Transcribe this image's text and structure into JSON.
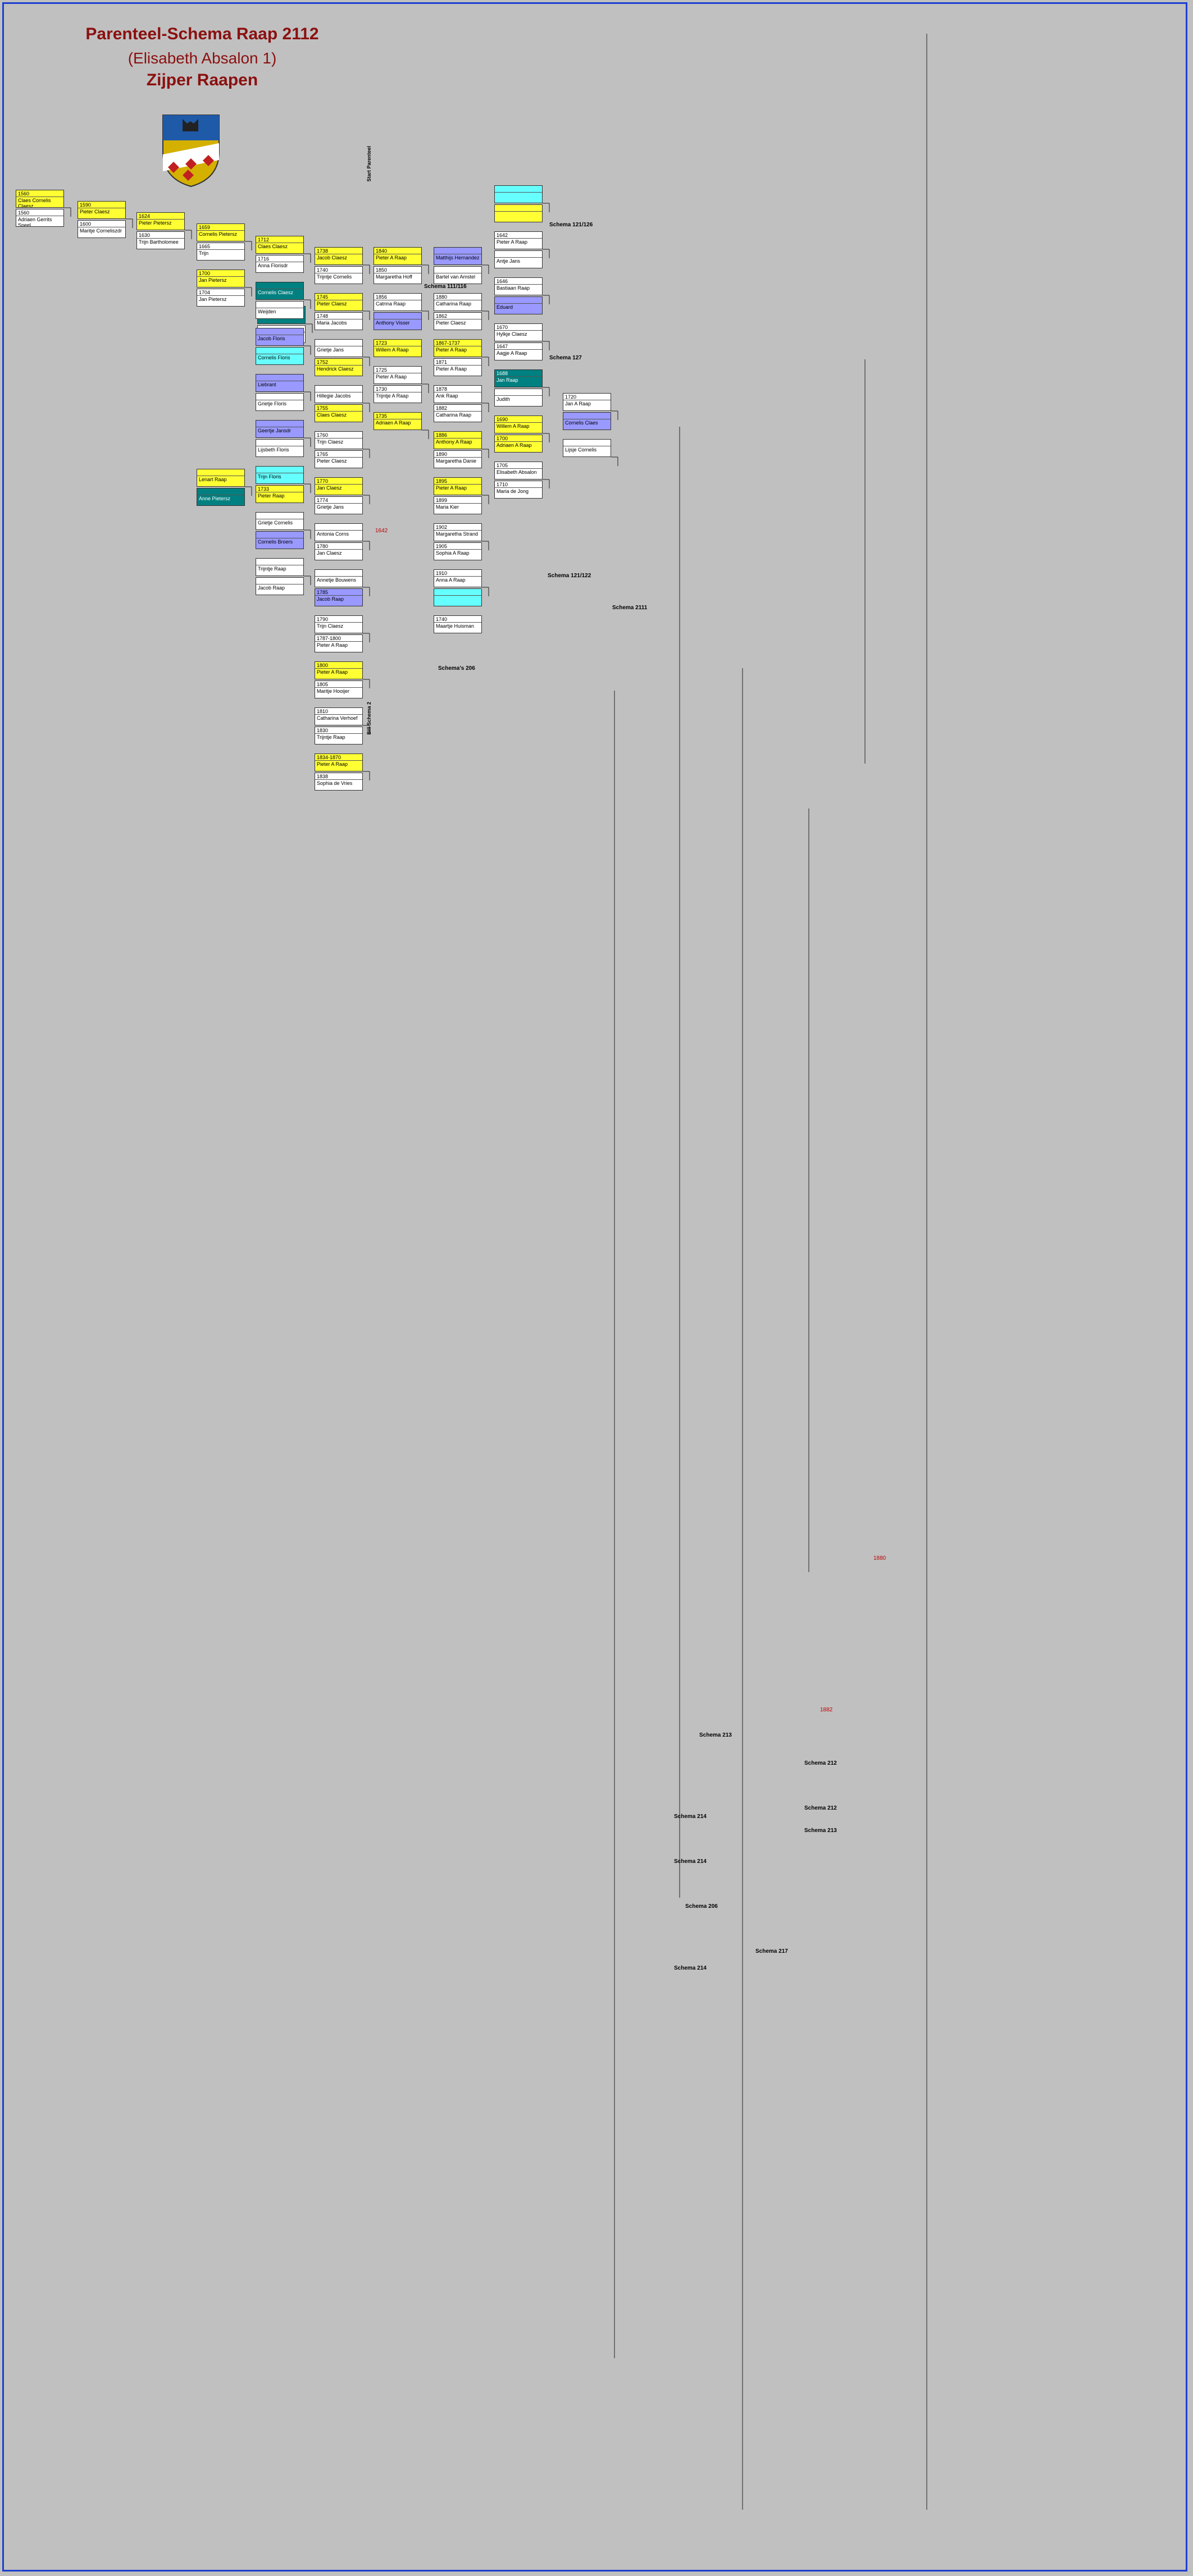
{
  "title": "Parenteel-Schema Raap 2112",
  "subtitle": "(Elisabeth Absalon 1)",
  "subtitle2": "Zijper Raapen",
  "colors": {
    "frame": "#1e3fd0",
    "title": "#8b1010",
    "yellow": "#ffff33",
    "teal": "#008080",
    "purple": "#9999ff",
    "cyan": "#66ffff"
  },
  "vertical_labels": [
    "Start Parenteel",
    "Bill Schema 2"
  ],
  "schema_labels": [
    "Schema 121/126",
    "Schema 111/116",
    "Schema 127",
    "Schema 121/122",
    "Schema 2111",
    "Schema's 206",
    "Schema 213",
    "Schema 212",
    "Schema 214",
    "Schema 214",
    "Schema 206",
    "Schema 214",
    "Schema 212",
    "Schema 213",
    "Schema 217"
  ],
  "marks": [
    "1642",
    "1880",
    "1882"
  ],
  "boxes": [
    [
      "1560",
      "Claes Cornelis Claesz",
      "yellow"
    ],
    [
      "1560",
      "Adriaen Gerrits Speel",
      "white"
    ],
    [
      "1590",
      "Pieter Claesz",
      "yellow"
    ],
    [
      "1600",
      "Maritje Corneliszdr",
      "white"
    ],
    [
      "1624",
      "Pieter Pietersz",
      "yellow"
    ],
    [
      "1630",
      "Trijn Bartholomee",
      "white"
    ],
    [
      "1659",
      "Cornelis Pietersz",
      "yellow"
    ],
    [
      "1665",
      "Trijn",
      "white"
    ],
    [
      "1700",
      "Jan Pietersz",
      "yellow"
    ],
    [
      "1704",
      "Jan Pietersz",
      "white"
    ],
    [
      "",
      "Jacob Pietersz",
      "teal"
    ],
    [
      "",
      "Grietje",
      "white"
    ],
    [
      "",
      "Lenart Raap",
      "yellow"
    ],
    [
      "",
      "Anne Pietersz",
      "teal"
    ],
    [
      "1712",
      "Claes Claesz",
      "yellow"
    ],
    [
      "1716",
      "Anna Florisdr",
      "white"
    ],
    [
      "",
      "Cornelis Claesz",
      "teal"
    ],
    [
      "",
      "Weijden",
      "white"
    ],
    [
      "",
      "Jacob Floris",
      "purple"
    ],
    [
      "",
      "Cornelis Floris",
      "cyan"
    ],
    [
      "",
      "Liebrant",
      "purple"
    ],
    [
      "",
      "Grietje Floris",
      "white"
    ],
    [
      "",
      "Geertje Jansdr",
      "purple"
    ],
    [
      "",
      "Lijsbeth Floris",
      "white"
    ],
    [
      "",
      "Trijn Floris",
      "cyan"
    ],
    [
      "1733",
      "Pieter Raap",
      "yellow"
    ],
    [
      "",
      "Grietje Cornelis",
      "white"
    ],
    [
      "",
      "Cornelis Broers",
      "purple"
    ],
    [
      "",
      "Trijntje Raap",
      "white"
    ],
    [
      "",
      "Jacob Raap",
      "white"
    ],
    [
      "1738",
      "Jacob Claesz",
      "yellow"
    ],
    [
      "1740",
      "Trijntje Cornelis",
      "white"
    ],
    [
      "1745",
      "Pieter Claesz",
      "yellow"
    ],
    [
      "1748",
      "Maria Jacobs",
      "white"
    ],
    [
      "",
      "Grietje Jans",
      "white"
    ],
    [
      "1752",
      "Hendrick Claesz",
      "yellow"
    ],
    [
      "",
      "Hillegie Jacobs",
      "white"
    ],
    [
      "1755",
      "Claes Claesz",
      "yellow"
    ],
    [
      "1760",
      "Trijn Claesz",
      "white"
    ],
    [
      "1765",
      "Pieter Claesz",
      "white"
    ],
    [
      "1770",
      "Jan Claesz",
      "yellow"
    ],
    [
      "1774",
      "Grietje Jans",
      "white"
    ],
    [
      "",
      "Antonia Corns",
      "white"
    ],
    [
      "1780",
      "Jan Claesz",
      "white"
    ],
    [
      "",
      "Annetje Bouwens",
      "white"
    ],
    [
      "1785",
      "Jacob Raap",
      "purple"
    ],
    [
      "1790",
      "Trijn Claesz",
      "white"
    ],
    [
      "1787-1800",
      "Pieter A Raap",
      "white"
    ],
    [
      "1800",
      "Pieter A Raap",
      "yellow"
    ],
    [
      "1805",
      "Maritje Hooijer",
      "white"
    ],
    [
      "1810",
      "Catharina Verhoef",
      "white"
    ],
    [
      "1830",
      "Trijntje Raap",
      "white"
    ],
    [
      "1834-1870",
      "Pieter A Raap",
      "yellow"
    ],
    [
      "1838",
      "Sophia de Vries",
      "white"
    ],
    [
      "1840",
      "Pieter A Raap",
      "yellow"
    ],
    [
      "1850",
      "Margaretha Hoff",
      "white"
    ],
    [
      "1856",
      "Catrina Raap",
      "white"
    ],
    [
      "",
      "Anthony Visser",
      "purple"
    ],
    [
      "",
      "Matthijs Hernandez",
      "purple"
    ],
    [
      "",
      "Bartel van Amstel",
      "white"
    ],
    [
      "1880",
      "Catharina Raap",
      "white"
    ],
    [
      "1862",
      "Pieter Claesz",
      "white"
    ],
    [
      "1867-1737",
      "Pieter A Raap",
      "yellow"
    ],
    [
      "1871",
      "Pieter A Raap",
      "white"
    ],
    [
      "1878",
      "Ank Raap",
      "white"
    ],
    [
      "1882",
      "Catharina Raap",
      "white"
    ],
    [
      "1886",
      "Anthony A Raap",
      "yellow"
    ],
    [
      "1890",
      "Margaretha Danie",
      "white"
    ],
    [
      "1895",
      "Pieter A Raap",
      "yellow"
    ],
    [
      "1899",
      "Maria Kier",
      "white"
    ],
    [
      "1902",
      "Margaretha Strand",
      "white"
    ],
    [
      "1905",
      "Sophia A Raap",
      "white"
    ],
    [
      "1910",
      "Anna A Raap",
      "white"
    ],
    [
      "",
      "",
      "cyan"
    ],
    [
      "",
      "",
      "cyan"
    ],
    [
      "",
      "",
      "yellow"
    ],
    [
      "1642",
      "Pieter A Raap",
      "white"
    ],
    [
      "",
      "Antje Jans",
      "white"
    ],
    [
      "1646",
      "Bastiaan Raap",
      "white"
    ],
    [
      "",
      "Eduard",
      "purple"
    ],
    [
      "1670",
      "Hylkje Claesz",
      "white"
    ],
    [
      "1647",
      "Aagje A Raap",
      "white"
    ],
    [
      "1688",
      "Jan Raap",
      "teal"
    ],
    [
      "",
      "Judith",
      "white"
    ],
    [
      "1690",
      "Willem A Raap",
      "yellow"
    ],
    [
      "1700",
      "Adriaen A Raap",
      "yellow"
    ],
    [
      "1705",
      "Elisabeth Absalon",
      "white"
    ],
    [
      "1710",
      "Maria de Jong",
      "white"
    ],
    [
      "1720",
      "Jan A Raap",
      "white"
    ],
    [
      "",
      "Cornelis Claes",
      "purple"
    ],
    [
      "",
      "Lijsje Cornelis",
      "white"
    ],
    [
      "1723",
      "Willem A Raap",
      "yellow"
    ],
    [
      "1725",
      "Pieter A Raap",
      "white"
    ],
    [
      "1730",
      "Trijntje A Raap",
      "white"
    ],
    [
      "1735",
      "Adriaen A Raap",
      "yellow"
    ],
    [
      "1740",
      "Maartje Huisman",
      "white"
    ]
  ]
}
